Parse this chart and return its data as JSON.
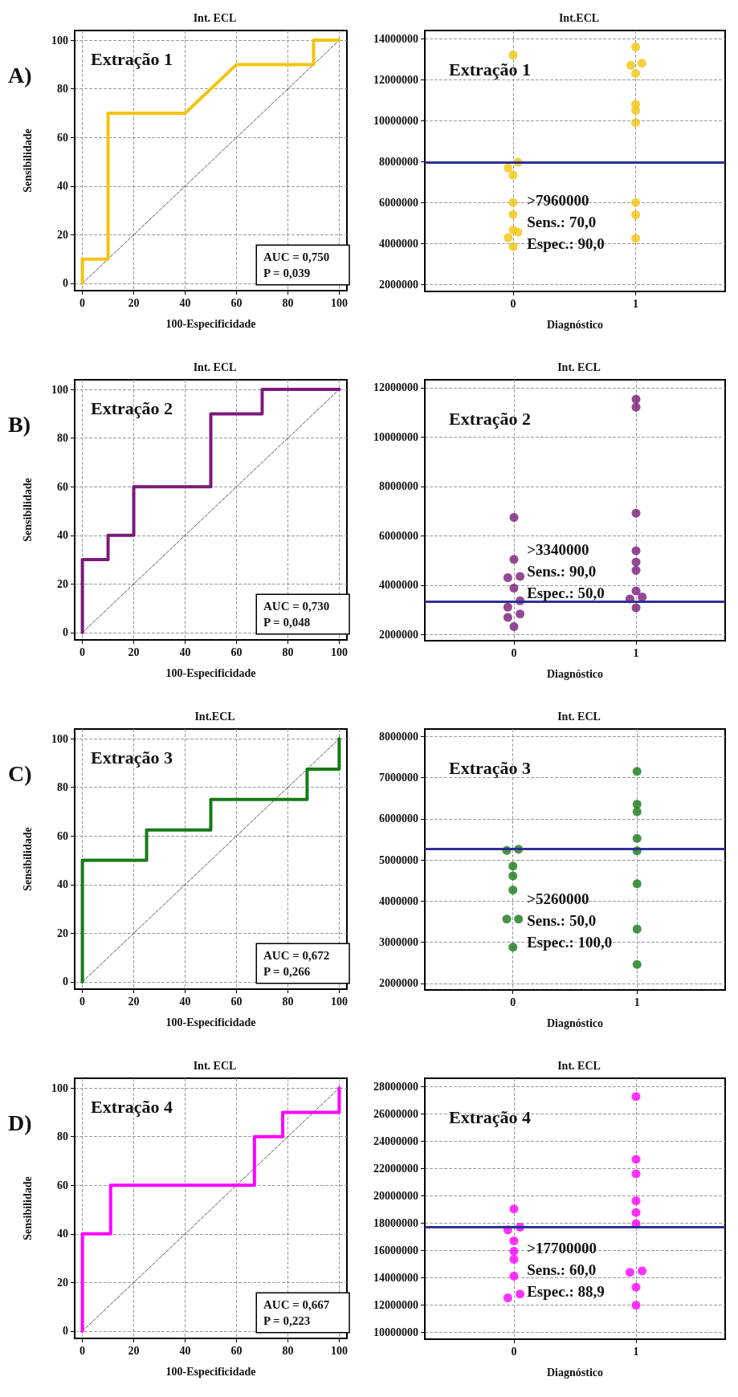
{
  "chart_data": [
    {
      "type": "line",
      "title": "Int. ECL",
      "xlabel": "100-Especificidade",
      "ylabel": "Sensibilidade",
      "annotations": [
        "A)",
        "Extração 1",
        "AUC = 0,750",
        "P = 0,039"
      ],
      "xlim": [
        -3,
        103
      ],
      "ylim": [
        -3,
        104
      ],
      "xticks": [
        0,
        20,
        40,
        60,
        80,
        100
      ],
      "yticks": [
        0,
        20,
        40,
        60,
        80,
        100
      ],
      "grid": true,
      "marker": "none",
      "line_style": "solid",
      "series": [
        {
          "color": "#f2c40f",
          "x": [
            0,
            0,
            10,
            10,
            40,
            60,
            90,
            90,
            100
          ],
          "values": [
            0,
            10,
            10,
            70,
            70,
            90,
            90,
            100,
            100
          ]
        },
        {
          "color": "#555555",
          "line_style": "dashed",
          "x": [
            0,
            100
          ],
          "values": [
            0,
            100
          ]
        }
      ]
    },
    {
      "type": "scatter",
      "title": "Int.ECL",
      "xlabel": "Diagnóstico",
      "annotations": [
        "Extração 1",
        ">7960000",
        "Sens.: 70,0",
        "Espec.: 90,0"
      ],
      "xlim": [
        -0.72,
        1.73
      ],
      "ylim": [
        1660000,
        14400000
      ],
      "xticks": [
        0,
        1
      ],
      "yticks": [
        2000000,
        4000000,
        6000000,
        8000000,
        10000000,
        12000000,
        14000000
      ],
      "grid": true,
      "marker": "circle",
      "ref_lines": [
        {
          "axis": "y",
          "value": 7960000,
          "color": "#2e3192"
        }
      ],
      "series": [
        {
          "color": "#f2c40f",
          "x": [
            0,
            0.04,
            -0.04,
            0,
            0,
            0,
            0,
            0.04,
            -0.04,
            0,
            1,
            0.96,
            1.05,
            1,
            1,
            1,
            1,
            1,
            1,
            1
          ],
          "values": [
            13200000,
            7970000,
            7690000,
            7330000,
            6000000,
            5410000,
            4660000,
            4550000,
            4290000,
            3850000,
            13600000,
            12700000,
            12800000,
            12300000,
            10800000,
            10500000,
            9900000,
            6000000,
            5400000,
            4250000
          ]
        }
      ]
    },
    {
      "type": "line",
      "title": "Int. ECL",
      "xlabel": "100-Especificidade",
      "ylabel": "Sensibilidade",
      "annotations": [
        "B)",
        "Extração 2",
        "AUC = 0,730",
        "P = 0,048"
      ],
      "xlim": [
        -3,
        103
      ],
      "ylim": [
        -3,
        104
      ],
      "xticks": [
        0,
        20,
        40,
        60,
        80,
        100
      ],
      "yticks": [
        0,
        20,
        40,
        60,
        80,
        100
      ],
      "grid": true,
      "marker": "none",
      "line_style": "solid",
      "series": [
        {
          "color": "#7b1a7b",
          "x": [
            0,
            0,
            10,
            10,
            20,
            20,
            50,
            50,
            70,
            70,
            100
          ],
          "values": [
            0,
            30,
            30,
            40,
            40,
            60,
            60,
            90,
            90,
            100,
            100
          ]
        },
        {
          "color": "#555555",
          "line_style": "dashed",
          "x": [
            0,
            100
          ],
          "values": [
            0,
            100
          ]
        }
      ]
    },
    {
      "type": "scatter",
      "title": "Int. ECL",
      "xlabel": "Diagnóstico",
      "annotations": [
        "Extração 2",
        ">3340000",
        "Sens.: 90,0",
        "Espec.: 50,0"
      ],
      "xlim": [
        -0.73,
        1.73
      ],
      "ylim": [
        1750000,
        12320000
      ],
      "xticks": [
        0,
        1
      ],
      "yticks": [
        2000000,
        4000000,
        6000000,
        8000000,
        10000000,
        12000000
      ],
      "grid": true,
      "marker": "circle",
      "ref_lines": [
        {
          "axis": "y",
          "value": 3340000,
          "color": "#2e3192"
        }
      ],
      "series": [
        {
          "color": "#7b1a7b",
          "x": [
            0,
            0,
            -0.05,
            0.05,
            0,
            0.05,
            -0.05,
            0.05,
            -0.05,
            0,
            1,
            1,
            1,
            1,
            1,
            1,
            1,
            0.95,
            1.05,
            1
          ],
          "values": [
            6740000,
            5040000,
            4300000,
            4350000,
            3880000,
            3370000,
            3110000,
            2830000,
            2690000,
            2320000,
            11530000,
            11210000,
            6910000,
            5390000,
            4940000,
            4600000,
            3770000,
            3440000,
            3520000,
            3080000
          ]
        }
      ]
    },
    {
      "type": "line",
      "title": "Int.ECL",
      "xlabel": "100-Especificidade",
      "ylabel": "Sensibilidade",
      "annotations": [
        "C)",
        "Extração 3",
        "AUC = 0,672",
        "P = 0,266"
      ],
      "xlim": [
        -3,
        103
      ],
      "ylim": [
        -3,
        104
      ],
      "xticks": [
        0,
        20,
        40,
        60,
        80,
        100
      ],
      "yticks": [
        0,
        20,
        40,
        60,
        80,
        100
      ],
      "grid": true,
      "marker": "none",
      "line_style": "solid",
      "series": [
        {
          "color": "#167a16",
          "x": [
            0,
            0,
            25,
            25,
            50,
            50,
            87.5,
            87.5,
            100,
            100
          ],
          "values": [
            0,
            50,
            50,
            62.5,
            62.5,
            75,
            75,
            87.5,
            87.5,
            100
          ]
        },
        {
          "color": "#555555",
          "line_style": "dashed",
          "x": [
            0,
            100
          ],
          "values": [
            0,
            100
          ]
        }
      ]
    },
    {
      "type": "scatter",
      "title": "Int. ECL",
      "xlabel": "Diagnóstico",
      "annotations": [
        "Extração 3",
        ">5260000",
        "Sens.: 50,0",
        "Espec.: 100,0"
      ],
      "xlim": [
        -0.71,
        1.71
      ],
      "ylim": [
        1840000,
        8180000
      ],
      "xticks": [
        0,
        1
      ],
      "yticks": [
        2000000,
        3000000,
        4000000,
        5000000,
        6000000,
        7000000,
        8000000
      ],
      "grid": true,
      "marker": "circle",
      "ref_lines": [
        {
          "axis": "y",
          "value": 5260000,
          "color": "#2e3192"
        }
      ],
      "series": [
        {
          "color": "#167a16",
          "x": [
            -0.05,
            0.045,
            0,
            0,
            0,
            -0.05,
            0.045,
            0,
            1,
            1,
            1,
            1,
            1,
            1,
            1,
            1
          ],
          "values": [
            5230000,
            5260000,
            4850000,
            4610000,
            4270000,
            3560000,
            3560000,
            2880000,
            7150000,
            6350000,
            6170000,
            5520000,
            5220000,
            4420000,
            3320000,
            2460000
          ]
        }
      ]
    },
    {
      "type": "line",
      "title": "Int. ECL",
      "xlabel": "100-Especificidade",
      "ylabel": "Sensibilidade",
      "annotations": [
        "D)",
        "Extração 4",
        "AUC = 0,667",
        "P = 0,223"
      ],
      "xlim": [
        -3,
        103
      ],
      "ylim": [
        -3,
        104
      ],
      "xticks": [
        0,
        20,
        40,
        60,
        80,
        100
      ],
      "yticks": [
        0,
        20,
        40,
        60,
        80,
        100
      ],
      "grid": true,
      "marker": "none",
      "line_style": "solid",
      "series": [
        {
          "color": "#ff00ff",
          "x": [
            0,
            0,
            11,
            11,
            67,
            67,
            78,
            78,
            100,
            100
          ],
          "values": [
            0,
            40,
            40,
            60,
            60,
            80,
            80,
            90,
            90,
            100
          ]
        },
        {
          "color": "#555555",
          "line_style": "dashed",
          "x": [
            0,
            100
          ],
          "values": [
            0,
            100
          ]
        }
      ]
    },
    {
      "type": "scatter",
      "title": "Int. ECL",
      "xlabel": "Diagnóstico",
      "annotations": [
        "Extração 4",
        ">17700000",
        "Sens.: 60,0",
        "Espec.: 88,9"
      ],
      "xlim": [
        -0.73,
        1.73
      ],
      "ylim": [
        9500000,
        28600000
      ],
      "xticks": [
        0,
        1
      ],
      "yticks": [
        10000000,
        12000000,
        14000000,
        16000000,
        18000000,
        20000000,
        22000000,
        24000000,
        26000000,
        28000000
      ],
      "grid": true,
      "marker": "circle",
      "ref_lines": [
        {
          "axis": "y",
          "value": 17700000,
          "color": "#2e3192"
        }
      ],
      "series": [
        {
          "color": "#ff00ff",
          "x": [
            0,
            -0.05,
            0.05,
            0,
            0,
            0,
            0,
            -0.05,
            0.05,
            1,
            1,
            1,
            1,
            1,
            1,
            0.95,
            1.05,
            1,
            1
          ],
          "values": [
            19040000,
            17500000,
            17700000,
            16700000,
            15940000,
            15350000,
            14120000,
            12520000,
            12810000,
            27260000,
            22670000,
            21600000,
            19630000,
            18770000,
            17960000,
            14390000,
            14500000,
            13310000,
            11980000
          ]
        }
      ]
    }
  ]
}
